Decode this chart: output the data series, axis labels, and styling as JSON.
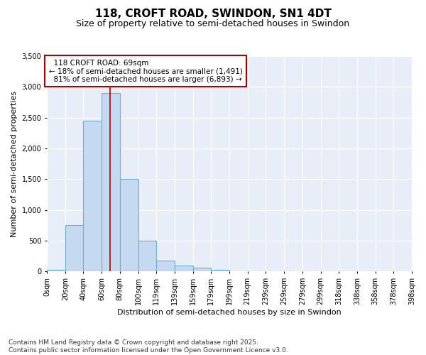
{
  "title": "118, CROFT ROAD, SWINDON, SN1 4DT",
  "subtitle": "Size of property relative to semi-detached houses in Swindon",
  "xlabel": "Distribution of semi-detached houses by size in Swindon",
  "ylabel": "Number of semi-detached properties",
  "bin_labels": [
    "0sqm",
    "20sqm",
    "40sqm",
    "60sqm",
    "80sqm",
    "100sqm",
    "119sqm",
    "139sqm",
    "159sqm",
    "179sqm",
    "199sqm",
    "219sqm",
    "239sqm",
    "259sqm",
    "279sqm",
    "299sqm",
    "318sqm",
    "338sqm",
    "358sqm",
    "378sqm",
    "398sqm"
  ],
  "bar_values": [
    30,
    750,
    2450,
    2900,
    1500,
    500,
    175,
    100,
    60,
    30,
    0,
    0,
    0,
    0,
    0,
    0,
    0,
    0,
    0,
    0
  ],
  "bar_color": "#c5d9f0",
  "bar_edge_color": "#6baed6",
  "vline_color": "#aa0000",
  "vline_x": 69,
  "annotation_box_edge_color": "#aa0000",
  "property_label": "118 CROFT ROAD: 69sqm",
  "smaller_pct": 18,
  "smaller_count": 1491,
  "larger_pct": 81,
  "larger_count": 6893,
  "ylim": [
    0,
    3500
  ],
  "yticks": [
    0,
    500,
    1000,
    1500,
    2000,
    2500,
    3000,
    3500
  ],
  "background_color": "#e8eef8",
  "grid_color": "#ffffff",
  "footer_text": "Contains HM Land Registry data © Crown copyright and database right 2025.\nContains public sector information licensed under the Open Government Licence v3.0.",
  "title_fontsize": 11,
  "subtitle_fontsize": 9,
  "axis_label_fontsize": 8,
  "tick_fontsize": 7,
  "annotation_fontsize": 7.5,
  "footer_fontsize": 6.5
}
